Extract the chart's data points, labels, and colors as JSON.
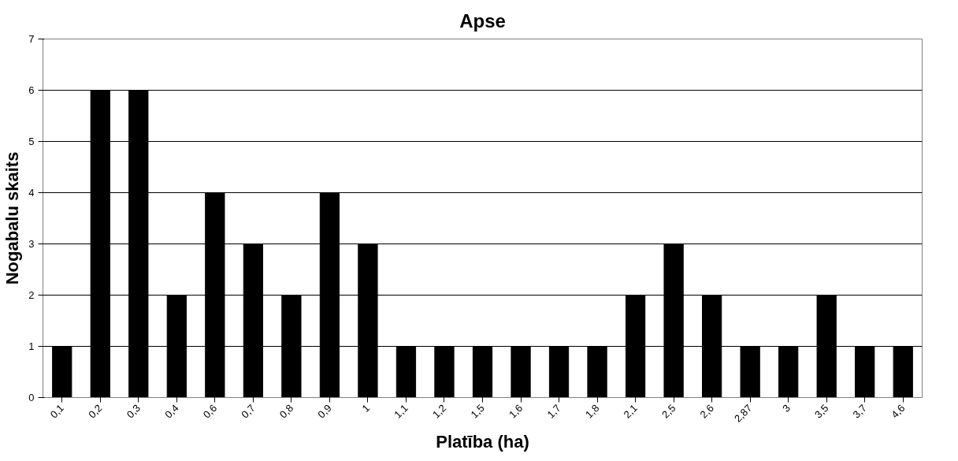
{
  "chart_data": {
    "type": "bar",
    "title": "Apse",
    "xlabel": "Platība (ha)",
    "ylabel": "Nogabalu skaits",
    "categories": [
      "0,1",
      "0,2",
      "0,3",
      "0,4",
      "0,6",
      "0,7",
      "0,8",
      "0,9",
      "1",
      "1,1",
      "1,2",
      "1,5",
      "1,6",
      "1,7",
      "1,8",
      "2,1",
      "2,5",
      "2,6",
      "2,87",
      "3",
      "3,5",
      "3,7",
      "4,6"
    ],
    "values": [
      1,
      6,
      6,
      2,
      4,
      3,
      2,
      4,
      3,
      1,
      1,
      1,
      1,
      1,
      1,
      2,
      3,
      2,
      1,
      1,
      2,
      1,
      1
    ],
    "color": "#000000",
    "ylim": [
      0,
      7
    ],
    "yticks": [
      0,
      1,
      2,
      3,
      4,
      5,
      6,
      7
    ],
    "grid": "y"
  }
}
